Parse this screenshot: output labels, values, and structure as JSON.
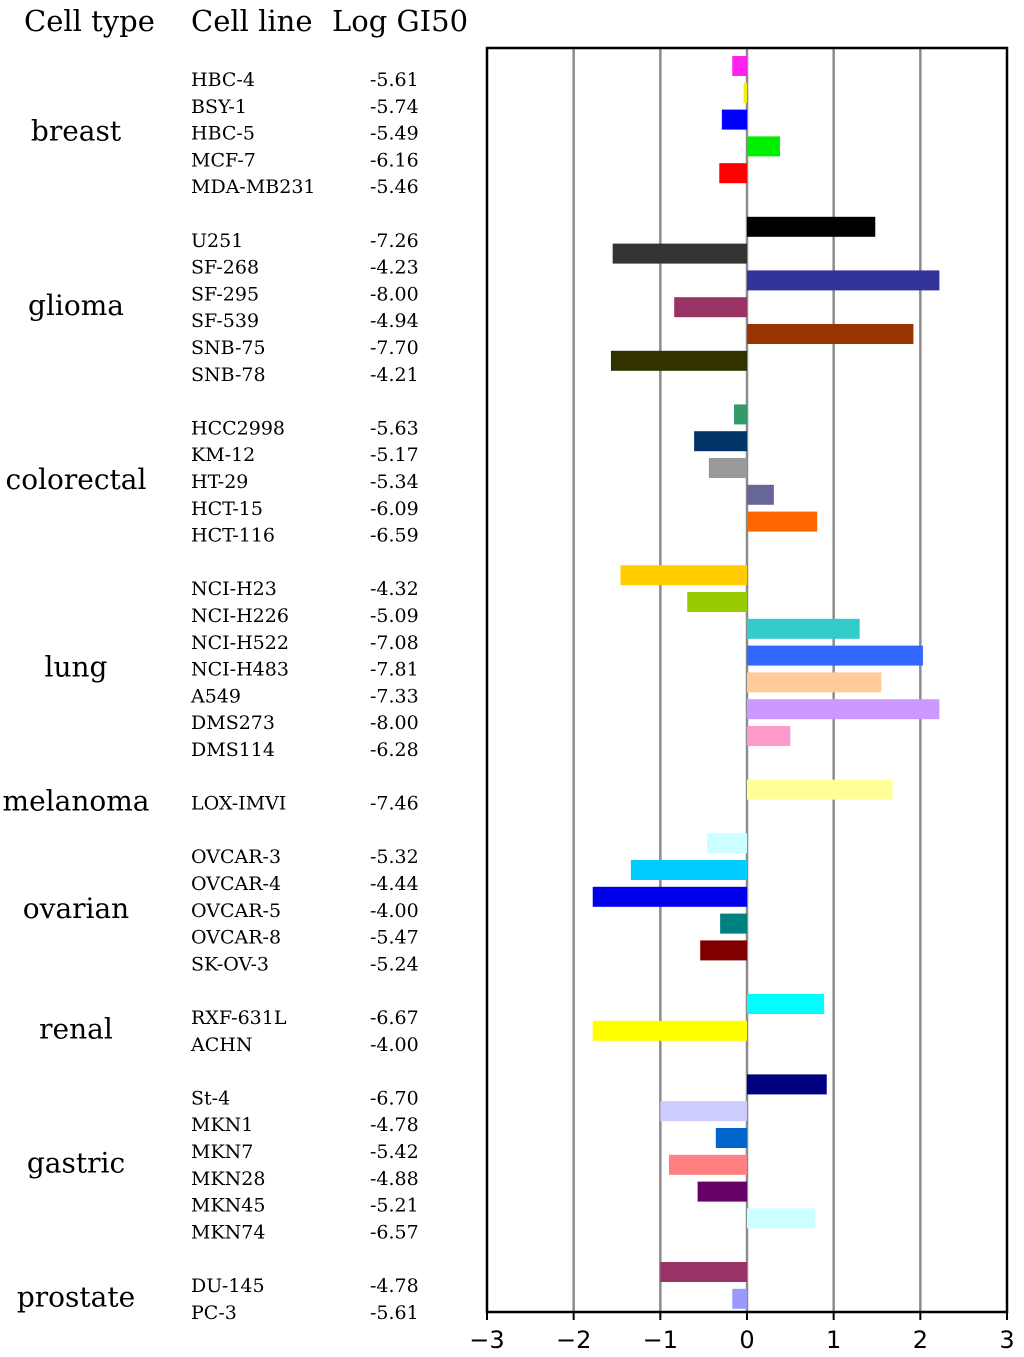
{
  "chart_data": {
    "type": "bar",
    "orientation": "horizontal",
    "headers": {
      "cell_type": "Cell type",
      "cell_line": "Cell line",
      "log_gi50": "Log GI50"
    },
    "xlim": [
      -3,
      3
    ],
    "xticks": [
      "−3",
      "−2",
      "−1",
      "0",
      "1",
      "2",
      "3"
    ],
    "groups": [
      {
        "type": "breast",
        "lines": [
          {
            "name": "HBC-4",
            "gi50": "-5.61",
            "value": -0.17,
            "color": "#ff22ee"
          },
          {
            "name": "BSY-1",
            "gi50": "-5.74",
            "value": -0.04,
            "color": "#f5f000"
          },
          {
            "name": "HBC-5",
            "gi50": "-5.49",
            "value": -0.29,
            "color": "#0000ff"
          },
          {
            "name": "MCF-7",
            "gi50": "-6.16",
            "value": 0.38,
            "color": "#00ee00"
          },
          {
            "name": "MDA-MB231",
            "gi50": "-5.46",
            "value": -0.32,
            "color": "#ff0000"
          }
        ]
      },
      {
        "type": "glioma",
        "lines": [
          {
            "name": "U251",
            "gi50": "-7.26",
            "value": 1.48,
            "color": "#000000"
          },
          {
            "name": "SF-268",
            "gi50": "-4.23",
            "value": -1.55,
            "color": "#333333"
          },
          {
            "name": "SF-295",
            "gi50": "-8.00",
            "value": 2.22,
            "color": "#333399"
          },
          {
            "name": "SF-539",
            "gi50": "-4.94",
            "value": -0.84,
            "color": "#993366"
          },
          {
            "name": "SNB-75",
            "gi50": "-7.70",
            "value": 1.92,
            "color": "#993300"
          },
          {
            "name": "SNB-78",
            "gi50": "-4.21",
            "value": -1.57,
            "color": "#333300"
          }
        ]
      },
      {
        "type": "colorectal",
        "lines": [
          {
            "name": "HCC2998",
            "gi50": "-5.63",
            "value": -0.15,
            "color": "#339966"
          },
          {
            "name": "KM-12",
            "gi50": "-5.17",
            "value": -0.61,
            "color": "#003366"
          },
          {
            "name": "HT-29",
            "gi50": "-5.34",
            "value": -0.44,
            "color": "#999999"
          },
          {
            "name": "HCT-15",
            "gi50": "-6.09",
            "value": 0.31,
            "color": "#666699"
          },
          {
            "name": "HCT-116",
            "gi50": "-6.59",
            "value": 0.81,
            "color": "#ff6600"
          }
        ]
      },
      {
        "type": "lung",
        "lines": [
          {
            "name": "NCI-H23",
            "gi50": "-4.32",
            "value": -1.46,
            "color": "#ffcc00"
          },
          {
            "name": "NCI-H226",
            "gi50": "-5.09",
            "value": -0.69,
            "color": "#99cc00"
          },
          {
            "name": "NCI-H522",
            "gi50": "-7.08",
            "value": 1.3,
            "color": "#33cccc"
          },
          {
            "name": "NCI-H483",
            "gi50": "-7.81",
            "value": 2.03,
            "color": "#3366ff"
          },
          {
            "name": "A549",
            "gi50": "-7.33",
            "value": 1.55,
            "color": "#ffcc99"
          },
          {
            "name": "DMS273",
            "gi50": "-8.00",
            "value": 2.22,
            "color": "#cc99ff"
          },
          {
            "name": "DMS114",
            "gi50": "-6.28",
            "value": 0.5,
            "color": "#ff99cc"
          }
        ]
      },
      {
        "type": "melanoma",
        "lines": [
          {
            "name": "LOX-IMVI",
            "gi50": "-7.46",
            "value": 1.68,
            "color": "#ffff99"
          }
        ]
      },
      {
        "type": "ovarian",
        "lines": [
          {
            "name": "OVCAR-3",
            "gi50": "-5.32",
            "value": -0.46,
            "color": "#ccffff"
          },
          {
            "name": "OVCAR-4",
            "gi50": "-4.44",
            "value": -1.34,
            "color": "#00ccff"
          },
          {
            "name": "OVCAR-5",
            "gi50": "-4.00",
            "value": -1.78,
            "color": "#0000ee"
          },
          {
            "name": "OVCAR-8",
            "gi50": "-5.47",
            "value": -0.31,
            "color": "#008080"
          },
          {
            "name": "SK-OV-3",
            "gi50": "-5.24",
            "value": -0.54,
            "color": "#800000"
          }
        ]
      },
      {
        "type": "renal",
        "lines": [
          {
            "name": "RXF-631L",
            "gi50": "-6.67",
            "value": 0.89,
            "color": "#00ffff"
          },
          {
            "name": "ACHN",
            "gi50": "-4.00",
            "value": -1.78,
            "color": "#ffff00"
          }
        ]
      },
      {
        "type": "gastric",
        "lines": [
          {
            "name": "St-4",
            "gi50": "-6.70",
            "value": 0.92,
            "color": "#000080"
          },
          {
            "name": "MKN1",
            "gi50": "-4.78",
            "value": -1.0,
            "color": "#ccccff"
          },
          {
            "name": "MKN7",
            "gi50": "-5.42",
            "value": -0.36,
            "color": "#0066cc"
          },
          {
            "name": "MKN28",
            "gi50": "-4.88",
            "value": -0.9,
            "color": "#ff8080"
          },
          {
            "name": "MKN45",
            "gi50": "-5.21",
            "value": -0.57,
            "color": "#660066"
          },
          {
            "name": "MKN74",
            "gi50": "-6.57",
            "value": 0.79,
            "color": "#ccffff"
          }
        ]
      },
      {
        "type": "prostate",
        "lines": [
          {
            "name": "DU-145",
            "gi50": "-4.78",
            "value": -1.0,
            "color": "#993366"
          },
          {
            "name": "PC-3",
            "gi50": "-5.61",
            "value": -0.17,
            "color": "#9999ff"
          }
        ]
      }
    ]
  }
}
